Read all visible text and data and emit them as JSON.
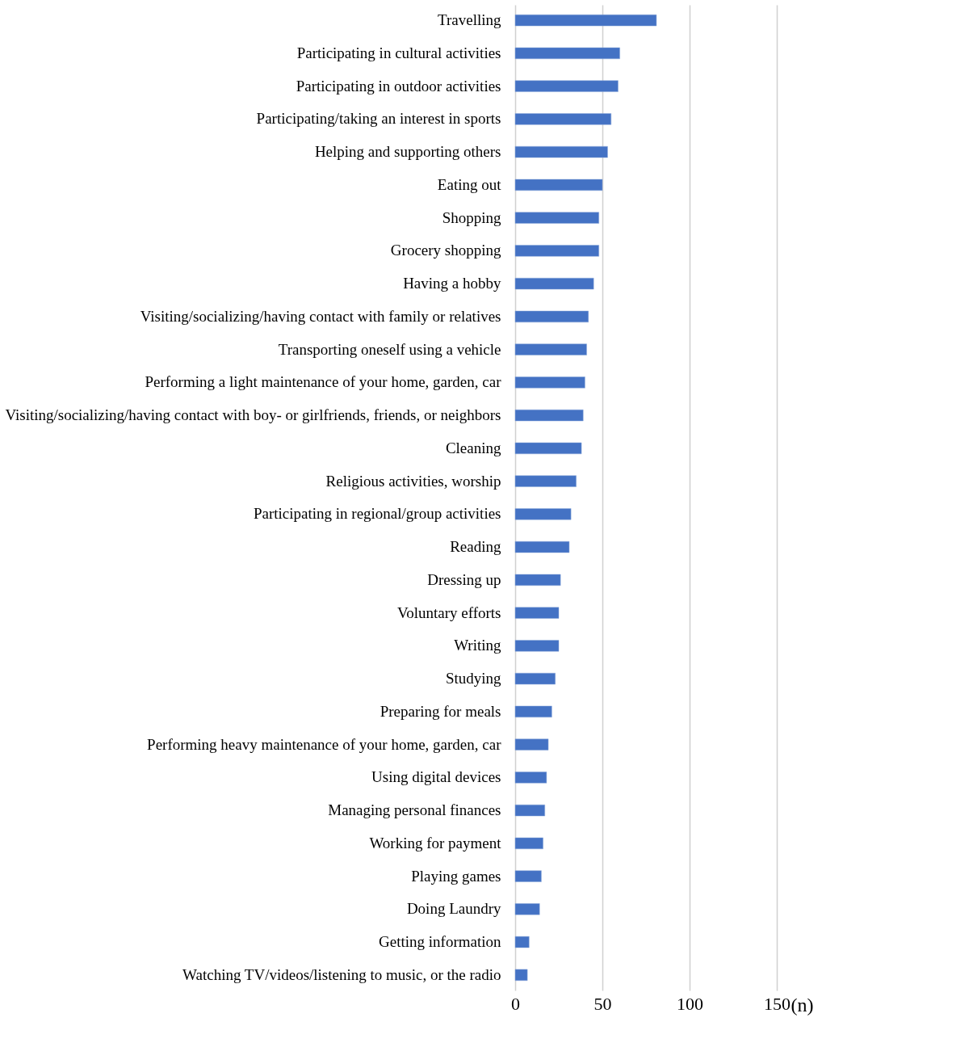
{
  "chart_data": {
    "type": "bar",
    "orientation": "horizontal",
    "xlabel": "(n)",
    "categories": [
      "Travelling",
      "Participating in cultural activities",
      "Participating in outdoor activities",
      "Participating/taking an interest in sports",
      "Helping and supporting others",
      "Eating out",
      "Shopping",
      "Grocery shopping",
      "Having a hobby",
      "Visiting/socializing/having contact with family or relatives",
      "Transporting oneself using a vehicle",
      "Performing a light maintenance of your home, garden, car",
      "Visiting/socializing/having contact with boy- or girlfriends, friends, or neighbors",
      "Cleaning",
      "Religious activities, worship",
      "Participating in regional/group activities",
      "Reading",
      "Dressing up",
      "Voluntary efforts",
      "Writing",
      "Studying",
      "Preparing for meals",
      "Performing heavy maintenance of your home, garden, car",
      "Using digital devices",
      "Managing personal finances",
      "Working for payment",
      "Playing games",
      "Doing Laundry",
      "Getting information",
      "Watching TV/videos/listening to music, or the radio"
    ],
    "values": [
      81,
      60,
      59,
      55,
      53,
      50,
      48,
      48,
      45,
      42,
      41,
      40,
      39,
      38,
      35,
      32,
      31,
      26,
      25,
      25,
      23,
      21,
      19,
      18,
      17,
      16,
      15,
      14,
      8,
      7
    ],
    "color": "#4472c4",
    "xlim": [
      0,
      150
    ],
    "xticks": [
      0,
      50,
      100,
      150
    ],
    "grid": "x"
  }
}
